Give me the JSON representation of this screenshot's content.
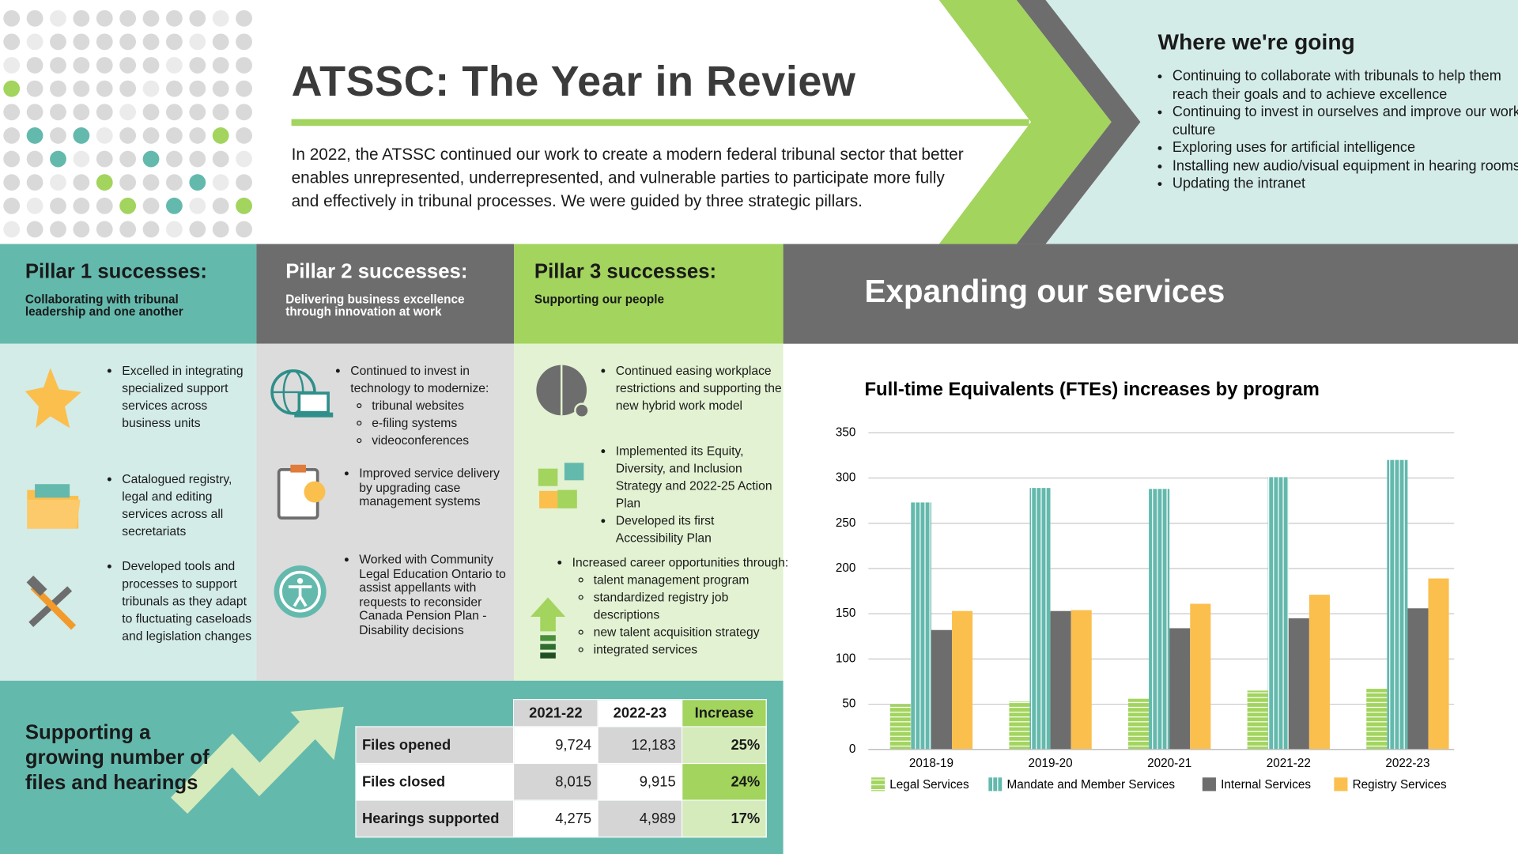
{
  "header": {
    "title": "ATSSC: The Year in Review",
    "intro": "In 2022, the ATSSC continued our work to create a modern federal tribunal sector that better enables unrepresented, underrepresented, and vulnerable parties to participate more fully and effectively in tribunal processes. We were guided by three strategic pillars."
  },
  "where": {
    "title": "Where we're going",
    "items": [
      "Continuing to collaborate with tribunals to help them reach their goals and to achieve excellence",
      "Continuing to invest in ourselves and improve our work culture",
      "Exploring uses for artificial intelligence",
      "Installing new audio/visual equipment in hearing rooms",
      "Updating the intranet"
    ]
  },
  "pillars": [
    {
      "title": "Pillar 1 successes:",
      "subtitle": "Collaborating with tribunal leadership and one another",
      "items": [
        {
          "text": "Excelled in integrating specialized support services across business units"
        },
        {
          "text": "Catalogued registry, legal and editing services across all secretariats"
        },
        {
          "text": "Developed tools and processes to support tribunals as they adapt to fluctuating caseloads and legislation changes"
        }
      ]
    },
    {
      "title": "Pillar 2 successes:",
      "subtitle": "Delivering business excellence through innovation at work",
      "items": [
        {
          "text": "Continued to invest in technology to modernize:",
          "subitems": [
            "tribunal websites",
            "e-filing systems",
            "videoconferences"
          ]
        },
        {
          "text": "Improved service delivery by upgrading case management systems"
        },
        {
          "text": "Worked with Community Legal Education Ontario to assist appellants with requests to reconsider Canada Pension Plan - Disability decisions"
        }
      ]
    },
    {
      "title": "Pillar 3 successes:",
      "subtitle": "Supporting our people",
      "items": [
        {
          "text": "Continued easing workplace restrictions and supporting the new hybrid work model"
        },
        {
          "text": "Implemented its Equity, Diversity, and Inclusion Strategy and 2022-25 Action Plan"
        },
        {
          "text": "Developed its first Accessibility Plan"
        },
        {
          "text": "Increased career opportunities through:",
          "subitems": [
            "talent management program",
            "standardized registry job descriptions",
            "new talent acquisition strategy",
            "integrated services"
          ]
        }
      ]
    }
  ],
  "services": {
    "title": "Expanding our services"
  },
  "files": {
    "title": "Supporting a growing number of files and hearings",
    "table": {
      "columns": [
        "2021-22",
        "2022-23",
        "Increase"
      ],
      "rows": [
        {
          "label": "Files opened",
          "values": [
            "9,724",
            "12,183",
            "25%"
          ]
        },
        {
          "label": "Files closed",
          "values": [
            "8,015",
            "9,915",
            "24%"
          ]
        },
        {
          "label": "Hearings supported",
          "values": [
            "4,275",
            "4,989",
            "17%"
          ]
        }
      ]
    }
  },
  "chart_data": {
    "type": "bar",
    "title": "Full-time Equivalents (FTEs) increases by program",
    "categories": [
      "2018-19",
      "2019-20",
      "2020-21",
      "2021-22",
      "2022-23"
    ],
    "series": [
      {
        "name": "Legal Services",
        "color": "#a2d45e",
        "values": [
          50,
          53,
          56,
          65,
          67
        ]
      },
      {
        "name": "Mandate and Member Services",
        "color": "#64b9ad",
        "values": [
          273,
          289,
          288,
          301,
          320
        ]
      },
      {
        "name": "Internal Services",
        "color": "#6d6d6d",
        "values": [
          132,
          153,
          134,
          145,
          156
        ]
      },
      {
        "name": "Registry Services",
        "color": "#fbbf4e",
        "values": [
          153,
          154,
          161,
          171,
          189
        ]
      }
    ],
    "ylim": [
      0,
      350
    ],
    "yticks": [
      0,
      50,
      100,
      150,
      200,
      250,
      300,
      350
    ],
    "grid": true,
    "legend": "bottom"
  }
}
